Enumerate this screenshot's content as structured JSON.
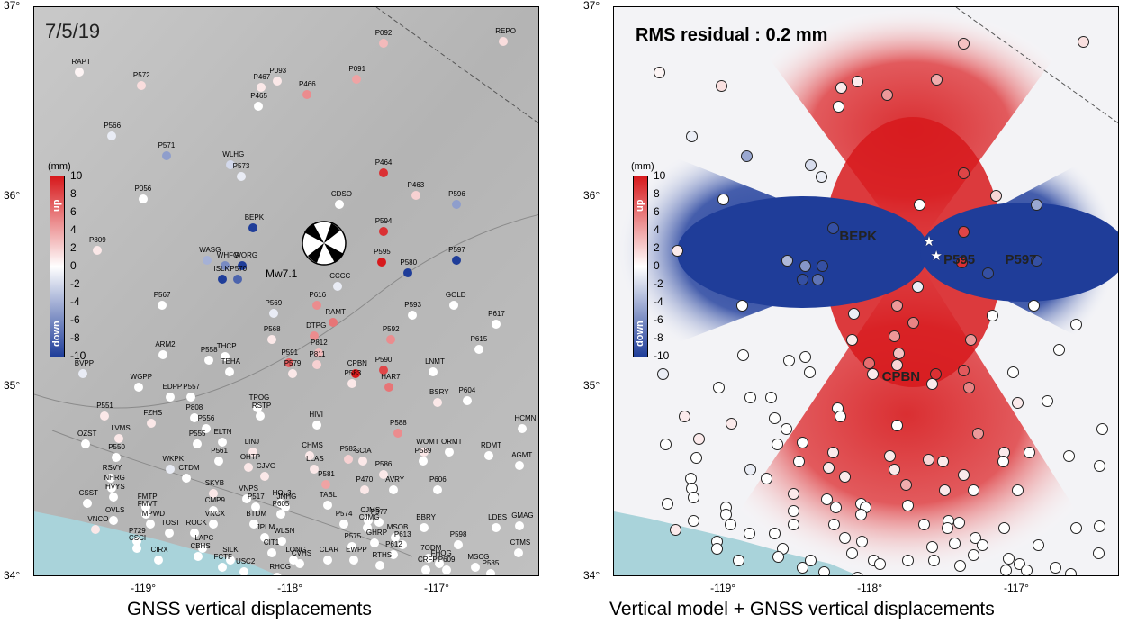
{
  "left": {
    "date": "7/5/19",
    "caption": "GNSS vertical displacements",
    "magnitude_label": "Mw7.1",
    "colorbar": {
      "unit": "(mm)",
      "ticks": [
        "10",
        "8",
        "6",
        "4",
        "2",
        "0",
        "-2",
        "-4",
        "-6",
        "-8",
        "-10"
      ],
      "up": "up",
      "down": "down"
    },
    "x_ticks": [
      "-119°",
      "-118°",
      "-117°"
    ],
    "y_ticks": [
      "37°",
      "36°",
      "35°",
      "34°"
    ],
    "stations": [
      {
        "n": "REPO",
        "lon": -116.55,
        "lat": 36.82,
        "v": 1.5
      },
      {
        "n": "P092",
        "lon": -117.37,
        "lat": 36.81,
        "v": 3
      },
      {
        "n": "RAPT",
        "lon": -119.44,
        "lat": 36.66,
        "v": 0.5
      },
      {
        "n": "P572",
        "lon": -119.02,
        "lat": 36.59,
        "v": 1.5
      },
      {
        "n": "P467",
        "lon": -118.2,
        "lat": 36.58,
        "v": 1
      },
      {
        "n": "P093",
        "lon": -118.09,
        "lat": 36.61,
        "v": 1
      },
      {
        "n": "P091",
        "lon": -117.55,
        "lat": 36.62,
        "v": 4
      },
      {
        "n": "P466",
        "lon": -117.89,
        "lat": 36.54,
        "v": 5
      },
      {
        "n": "P465",
        "lon": -118.22,
        "lat": 36.48,
        "v": 0
      },
      {
        "n": "P566",
        "lon": -119.22,
        "lat": 36.32,
        "v": -1
      },
      {
        "n": "P571",
        "lon": -118.85,
        "lat": 36.22,
        "v": -5
      },
      {
        "n": "WLHG",
        "lon": -118.41,
        "lat": 36.17,
        "v": -2
      },
      {
        "n": "P573",
        "lon": -118.34,
        "lat": 36.11,
        "v": -1
      },
      {
        "n": "P464",
        "lon": -117.37,
        "lat": 36.13,
        "v": 9
      },
      {
        "n": "P463",
        "lon": -117.15,
        "lat": 36.01,
        "v": 2
      },
      {
        "n": "P056",
        "lon": -119.01,
        "lat": 35.99,
        "v": 0
      },
      {
        "n": "CDSO",
        "lon": -117.67,
        "lat": 35.96,
        "v": 0
      },
      {
        "n": "P596",
        "lon": -116.87,
        "lat": 35.96,
        "v": -5
      },
      {
        "n": "BEPK",
        "lon": -118.26,
        "lat": 35.84,
        "v": -10
      },
      {
        "n": "P594",
        "lon": -117.37,
        "lat": 35.82,
        "v": 9
      },
      {
        "n": "P809",
        "lon": -119.32,
        "lat": 35.72,
        "v": 1
      },
      {
        "n": "WASG",
        "lon": -118.57,
        "lat": 35.67,
        "v": -4
      },
      {
        "n": "WHFG",
        "lon": -118.45,
        "lat": 35.64,
        "v": -6
      },
      {
        "n": "WORG",
        "lon": -118.33,
        "lat": 35.64,
        "v": -10
      },
      {
        "n": "ISLK",
        "lon": -118.47,
        "lat": 35.57,
        "v": -10
      },
      {
        "n": "P570",
        "lon": -118.36,
        "lat": 35.57,
        "v": -8
      },
      {
        "n": "P595",
        "lon": -117.38,
        "lat": 35.66,
        "v": 10
      },
      {
        "n": "P597",
        "lon": -116.87,
        "lat": 35.67,
        "v": -10
      },
      {
        "n": "P580",
        "lon": -117.2,
        "lat": 35.6,
        "v": -10
      },
      {
        "n": "CCCC",
        "lon": -117.68,
        "lat": 35.53,
        "v": -1
      },
      {
        "n": "GOLD",
        "lon": -116.89,
        "lat": 35.43,
        "v": 0
      },
      {
        "n": "P567",
        "lon": -118.88,
        "lat": 35.43,
        "v": 0
      },
      {
        "n": "P616",
        "lon": -117.82,
        "lat": 35.43,
        "v": 5
      },
      {
        "n": "P569",
        "lon": -118.12,
        "lat": 35.39,
        "v": -1
      },
      {
        "n": "P593",
        "lon": -117.17,
        "lat": 35.38,
        "v": 0
      },
      {
        "n": "RAMT",
        "lon": -117.71,
        "lat": 35.34,
        "v": 6
      },
      {
        "n": "P617",
        "lon": -116.6,
        "lat": 35.33,
        "v": 0
      },
      {
        "n": "P568",
        "lon": -118.13,
        "lat": 35.25,
        "v": 1
      },
      {
        "n": "DTPG",
        "lon": -117.84,
        "lat": 35.27,
        "v": 5
      },
      {
        "n": "P592",
        "lon": -117.32,
        "lat": 35.25,
        "v": 5
      },
      {
        "n": "P615",
        "lon": -116.72,
        "lat": 35.2,
        "v": 0
      },
      {
        "n": "ARM2",
        "lon": -118.87,
        "lat": 35.17,
        "v": 0
      },
      {
        "n": "THCP",
        "lon": -118.45,
        "lat": 35.16,
        "v": 0
      },
      {
        "n": "P812",
        "lon": -117.81,
        "lat": 35.18,
        "v": 3
      },
      {
        "n": "P558",
        "lon": -118.56,
        "lat": 35.14,
        "v": 0
      },
      {
        "n": "P591",
        "lon": -118.01,
        "lat": 35.13,
        "v": 7
      },
      {
        "n": "P811",
        "lon": -117.82,
        "lat": 35.12,
        "v": 2
      },
      {
        "n": "P590",
        "lon": -117.37,
        "lat": 35.09,
        "v": 8
      },
      {
        "n": "LNMT",
        "lon": -117.03,
        "lat": 35.08,
        "v": 0
      },
      {
        "n": "TEHA",
        "lon": -118.42,
        "lat": 35.08,
        "v": 0
      },
      {
        "n": "BVPP",
        "lon": -119.42,
        "lat": 35.07,
        "v": -1
      },
      {
        "n": "P579",
        "lon": -117.99,
        "lat": 35.07,
        "v": 1
      },
      {
        "n": "CPBN",
        "lon": -117.56,
        "lat": 35.07,
        "v": 10
      },
      {
        "n": "P583",
        "lon": -117.58,
        "lat": 35.02,
        "v": 1
      },
      {
        "n": "WGPP",
        "lon": -119.04,
        "lat": 35.0,
        "v": 0
      },
      {
        "n": "HAR7",
        "lon": -117.33,
        "lat": 35.0,
        "v": 6
      },
      {
        "n": "EDPP",
        "lon": -118.82,
        "lat": 34.95,
        "v": 0
      },
      {
        "n": "P557",
        "lon": -118.68,
        "lat": 34.95,
        "v": 0
      },
      {
        "n": "P604",
        "lon": -116.8,
        "lat": 34.93,
        "v": 0
      },
      {
        "n": "BSRY",
        "lon": -117.0,
        "lat": 34.92,
        "v": 1
      },
      {
        "n": "TPOG",
        "lon": -118.23,
        "lat": 34.89,
        "v": 0
      },
      {
        "n": "RSTP",
        "lon": -118.21,
        "lat": 34.85,
        "v": 0
      },
      {
        "n": "P551",
        "lon": -119.27,
        "lat": 34.85,
        "v": 1
      },
      {
        "n": "P808",
        "lon": -118.66,
        "lat": 34.84,
        "v": 0
      },
      {
        "n": "HIVI",
        "lon": -117.82,
        "lat": 34.8,
        "v": 0
      },
      {
        "n": "FZHS",
        "lon": -118.95,
        "lat": 34.81,
        "v": 1
      },
      {
        "n": "P556",
        "lon": -118.58,
        "lat": 34.78,
        "v": 0
      },
      {
        "n": "P588",
        "lon": -117.27,
        "lat": 34.76,
        "v": 5
      },
      {
        "n": "HCMN",
        "lon": -116.42,
        "lat": 34.78,
        "v": 0
      },
      {
        "n": "LVMS",
        "lon": -119.17,
        "lat": 34.73,
        "v": 1
      },
      {
        "n": "ELTN",
        "lon": -118.47,
        "lat": 34.71,
        "v": 0
      },
      {
        "n": "OZST",
        "lon": -119.4,
        "lat": 34.7,
        "v": 0
      },
      {
        "n": "P555",
        "lon": -118.64,
        "lat": 34.7,
        "v": 0
      },
      {
        "n": "LINJ",
        "lon": -118.26,
        "lat": 34.66,
        "v": 1
      },
      {
        "n": "CHMS",
        "lon": -117.87,
        "lat": 34.64,
        "v": 1
      },
      {
        "n": "WOMT",
        "lon": -117.09,
        "lat": 34.66,
        "v": 1
      },
      {
        "n": "ORMT",
        "lon": -116.92,
        "lat": 34.66,
        "v": 0
      },
      {
        "n": "P550",
        "lon": -119.19,
        "lat": 34.63,
        "v": 0
      },
      {
        "n": "RDMT",
        "lon": -116.65,
        "lat": 34.64,
        "v": 0
      },
      {
        "n": "P582",
        "lon": -117.61,
        "lat": 34.62,
        "v": 2
      },
      {
        "n": "SCIA",
        "lon": -117.51,
        "lat": 34.61,
        "v": 1
      },
      {
        "n": "P589",
        "lon": -117.1,
        "lat": 34.61,
        "v": 0
      },
      {
        "n": "P561",
        "lon": -118.49,
        "lat": 34.61,
        "v": 0
      },
      {
        "n": "OHTP",
        "lon": -118.29,
        "lat": 34.58,
        "v": 1
      },
      {
        "n": "LLAS",
        "lon": -117.84,
        "lat": 34.57,
        "v": 1
      },
      {
        "n": "WKPK",
        "lon": -118.82,
        "lat": 34.57,
        "v": -1
      },
      {
        "n": "AGMT",
        "lon": -116.44,
        "lat": 34.59,
        "v": 0
      },
      {
        "n": "CJVG",
        "lon": -118.18,
        "lat": 34.53,
        "v": 1
      },
      {
        "n": "P586",
        "lon": -117.37,
        "lat": 34.54,
        "v": 1
      },
      {
        "n": "RSVY",
        "lon": -119.23,
        "lat": 34.52,
        "v": 0
      },
      {
        "n": "CTDM",
        "lon": -118.71,
        "lat": 34.52,
        "v": 0
      },
      {
        "n": "P581",
        "lon": -117.76,
        "lat": 34.49,
        "v": 4
      },
      {
        "n": "NHRG",
        "lon": -119.22,
        "lat": 34.47,
        "v": 0
      },
      {
        "n": "P470",
        "lon": -117.5,
        "lat": 34.46,
        "v": 1
      },
      {
        "n": "AVRY",
        "lon": -117.3,
        "lat": 34.46,
        "v": 0
      },
      {
        "n": "P606",
        "lon": -117.0,
        "lat": 34.46,
        "v": 0
      },
      {
        "n": "HVYS",
        "lon": -119.21,
        "lat": 34.42,
        "v": 0
      },
      {
        "n": "SKYB",
        "lon": -118.53,
        "lat": 34.44,
        "v": 1
      },
      {
        "n": "VNPS",
        "lon": -118.3,
        "lat": 34.41,
        "v": 0
      },
      {
        "n": "CSST",
        "lon": -119.39,
        "lat": 34.39,
        "v": 0
      },
      {
        "n": "HOL3",
        "lon": -118.07,
        "lat": 34.39,
        "v": 0
      },
      {
        "n": "TABL",
        "lon": -117.75,
        "lat": 34.38,
        "v": 0
      },
      {
        "n": "JNHG",
        "lon": -118.04,
        "lat": 34.37,
        "v": 0
      },
      {
        "n": "FMTP",
        "lon": -118.99,
        "lat": 34.37,
        "v": 0
      },
      {
        "n": "P517",
        "lon": -118.24,
        "lat": 34.37,
        "v": 0
      },
      {
        "n": "CMP9",
        "lon": -118.53,
        "lat": 34.35,
        "v": 0
      },
      {
        "n": "P605",
        "lon": -118.07,
        "lat": 34.33,
        "v": 0
      },
      {
        "n": "FMVT",
        "lon": -118.99,
        "lat": 34.33,
        "v": 0
      },
      {
        "n": "OVLS",
        "lon": -119.21,
        "lat": 34.3,
        "v": 0
      },
      {
        "n": "CJMS",
        "lon": -117.47,
        "lat": 34.3,
        "v": 0
      },
      {
        "n": "P577",
        "lon": -117.4,
        "lat": 34.29,
        "v": 0
      },
      {
        "n": "MPWD",
        "lon": -118.96,
        "lat": 34.28,
        "v": 0
      },
      {
        "n": "VNCX",
        "lon": -118.53,
        "lat": 34.28,
        "v": 0
      },
      {
        "n": "BTDM",
        "lon": -118.25,
        "lat": 34.28,
        "v": 0
      },
      {
        "n": "P574",
        "lon": -117.64,
        "lat": 34.28,
        "v": 0
      },
      {
        "n": "CJMG",
        "lon": -117.48,
        "lat": 34.26,
        "v": 0
      },
      {
        "n": "BBRY",
        "lon": -117.09,
        "lat": 34.26,
        "v": 0
      },
      {
        "n": "GMAG",
        "lon": -116.44,
        "lat": 34.27,
        "v": 0
      },
      {
        "n": "LDES",
        "lon": -116.6,
        "lat": 34.26,
        "v": 0
      },
      {
        "n": "VNCO",
        "lon": -119.33,
        "lat": 34.25,
        "v": 1
      },
      {
        "n": "JPLM",
        "lon": -118.18,
        "lat": 34.21,
        "v": 0
      },
      {
        "n": "TOST",
        "lon": -118.83,
        "lat": 34.23,
        "v": 0
      },
      {
        "n": "ROCK",
        "lon": -118.66,
        "lat": 34.23,
        "v": 0
      },
      {
        "n": "MSOB",
        "lon": -117.29,
        "lat": 34.21,
        "v": 0
      },
      {
        "n": "WLSN",
        "lon": -118.06,
        "lat": 34.19,
        "v": 0
      },
      {
        "n": "P729",
        "lon": -119.05,
        "lat": 34.19,
        "v": 0
      },
      {
        "n": "GHRP",
        "lon": -117.43,
        "lat": 34.18,
        "v": 0
      },
      {
        "n": "P613",
        "lon": -117.24,
        "lat": 34.17,
        "v": 0
      },
      {
        "n": "CSCI",
        "lon": -119.05,
        "lat": 34.15,
        "v": 0
      },
      {
        "n": "P598",
        "lon": -116.86,
        "lat": 34.17,
        "v": 0
      },
      {
        "n": "LAPC",
        "lon": -118.6,
        "lat": 34.15,
        "v": 0
      },
      {
        "n": "P575",
        "lon": -117.58,
        "lat": 34.16,
        "v": 0
      },
      {
        "n": "CTMS",
        "lon": -116.45,
        "lat": 34.13,
        "v": 0
      },
      {
        "n": "CBHS",
        "lon": -118.63,
        "lat": 34.11,
        "v": 0
      },
      {
        "n": "CIT1",
        "lon": -118.13,
        "lat": 34.13,
        "v": 0
      },
      {
        "n": "P612",
        "lon": -117.3,
        "lat": 34.12,
        "v": 0
      },
      {
        "n": "CIRX",
        "lon": -118.9,
        "lat": 34.09,
        "v": 0
      },
      {
        "n": "SILK",
        "lon": -118.41,
        "lat": 34.09,
        "v": 0
      },
      {
        "n": "LONG",
        "lon": -117.98,
        "lat": 34.09,
        "v": 0
      },
      {
        "n": "CLAR",
        "lon": -117.75,
        "lat": 34.09,
        "v": 0
      },
      {
        "n": "EWPP",
        "lon": -117.57,
        "lat": 34.09,
        "v": 0
      },
      {
        "n": "7ODM",
        "lon": -117.06,
        "lat": 34.1,
        "v": 0
      },
      {
        "n": "CVHS",
        "lon": -117.94,
        "lat": 34.07,
        "v": 0
      },
      {
        "n": "RTHS",
        "lon": -117.39,
        "lat": 34.06,
        "v": 0
      },
      {
        "n": "FHOG",
        "lon": -116.99,
        "lat": 34.07,
        "v": 0
      },
      {
        "n": "FCTF",
        "lon": -118.47,
        "lat": 34.05,
        "v": 0
      },
      {
        "n": "CRFP",
        "lon": -117.08,
        "lat": 34.04,
        "v": 0
      },
      {
        "n": "MSCG",
        "lon": -116.74,
        "lat": 34.05,
        "v": 0
      },
      {
        "n": "P609",
        "lon": -116.94,
        "lat": 34.04,
        "v": 0
      },
      {
        "n": "USC2",
        "lon": -118.32,
        "lat": 34.03,
        "v": 0
      },
      {
        "n": "RHCG",
        "lon": -118.09,
        "lat": 34.0,
        "v": 0
      },
      {
        "n": "P585",
        "lon": -116.64,
        "lat": 34.02,
        "v": 0
      }
    ]
  },
  "right": {
    "rms_label": "RMS residual :  0.2 mm",
    "caption": "Vertical model + GNSS vertical displacements",
    "station_labels": [
      {
        "n": "BEPK",
        "lon": -118.09,
        "lat": 35.79
      },
      {
        "n": "P595",
        "lon": -117.38,
        "lat": 35.67
      },
      {
        "n": "P597",
        "lon": -116.96,
        "lat": 35.67
      },
      {
        "n": "CPBN",
        "lon": -117.8,
        "lat": 35.05
      }
    ],
    "colorbar": {
      "unit": "(mm)",
      "ticks": [
        "10",
        "8",
        "6",
        "4",
        "2",
        "0",
        "-2",
        "-4",
        "-6",
        "-8",
        "-10"
      ],
      "up": "up",
      "down": "down"
    },
    "x_ticks": [
      "-119°",
      "-118°",
      "-117°"
    ],
    "y_ticks": [
      "37°",
      "36°",
      "35°",
      "34°"
    ]
  },
  "colors": {
    "up": "#d7191c",
    "down": "#1f3d99",
    "neutral": "#ffffff",
    "sea": "#a9d3da",
    "land": "#b8b8b8"
  }
}
